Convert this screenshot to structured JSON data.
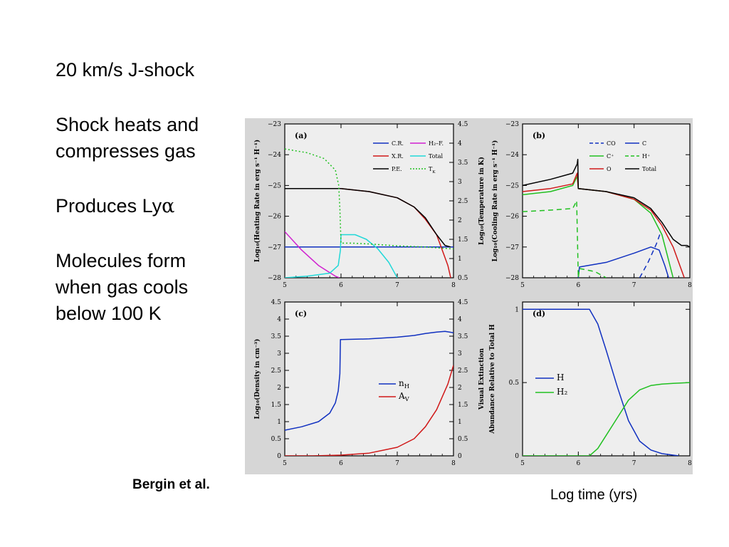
{
  "slide": {
    "title": "20 km/s J-shock",
    "bullet_1_line1": "Shock heats and",
    "bullet_1_line2": "compresses gas",
    "bullet_2_prefix": "Produces Ly",
    "bullet_2_symbol": "α",
    "bullet_3_line1": "Molecules form",
    "bullet_3_line2": "when gas cools",
    "bullet_3_line3": "below 100 K",
    "credit": "Bergin et al.",
    "x_caption": "Log time  (yrs)"
  },
  "colors": {
    "panel_bg": "#eeeeee",
    "frame_bg": "#d6d6d6",
    "blue": "#1030c0",
    "cyan": "#20d8d8",
    "magenta": "#d020d0",
    "red": "#d01818",
    "green": "#20c020",
    "black": "#000000"
  },
  "chart_data": [
    {
      "panel_label": "(a)",
      "type": "line",
      "xlim": [
        5,
        8
      ],
      "x_ticks": [
        "5",
        "6",
        "7",
        "8"
      ],
      "ylim": [
        -28,
        -23
      ],
      "y_ticks": [
        "-28",
        "-27",
        "-26",
        "-25",
        "-24",
        "-23"
      ],
      "ylabel": "Log₁₀(Heating Rate in erg s⁻¹ H⁻¹)",
      "y2lim": [
        0.5,
        4.5
      ],
      "y2_ticks": [
        "0.5",
        "1",
        "1.5",
        "2",
        "2.5",
        "3",
        "3.5",
        "4",
        "4.5"
      ],
      "y2label": "Log₁₀(Temperature in K)",
      "legend": [
        "C.R.",
        "H₂–F.",
        "X.R.",
        "Total",
        "P.E.",
        "T_K"
      ],
      "series": [
        {
          "name": "C.R.",
          "color": "#1030c0",
          "x": [
            5,
            8
          ],
          "y": [
            -27,
            -27
          ]
        },
        {
          "name": "X.R.",
          "color": "#d020d0",
          "x": [
            5,
            5.3,
            5.6,
            5.9,
            5.97
          ],
          "y": [
            -26.5,
            -27.1,
            -27.6,
            -27.95,
            -28
          ]
        },
        {
          "name": "P.E.",
          "color": "#d01818",
          "x": [
            5,
            5.5,
            6,
            6.5,
            7,
            7.3,
            7.5,
            7.7,
            7.9,
            7.95
          ],
          "y": [
            -25.1,
            -25.1,
            -25.1,
            -25.2,
            -25.4,
            -25.7,
            -26.1,
            -26.6,
            -27.6,
            -28
          ]
        },
        {
          "name": "H₂–F.",
          "color": "#20d8d8",
          "x": [
            5,
            5.4,
            5.8,
            5.95,
            5.99,
            6.0,
            6.25,
            6.45,
            6.65,
            6.85,
            7.0
          ],
          "y": [
            -28,
            -27.95,
            -27.85,
            -27.6,
            -27.1,
            -26.6,
            -26.6,
            -26.75,
            -27.05,
            -27.5,
            -28
          ]
        },
        {
          "name": "Total",
          "color": "#000000",
          "x": [
            5,
            5.5,
            5.95,
            6.0,
            6.5,
            7.0,
            7.3,
            7.5,
            7.7,
            7.85,
            7.95
          ],
          "y": [
            -25.1,
            -25.1,
            -25.1,
            -25.1,
            -25.2,
            -25.4,
            -25.7,
            -26.05,
            -26.6,
            -26.95,
            -27
          ]
        },
        {
          "name": "T_K",
          "axis": "right",
          "style": "dotted",
          "color": "#20c020",
          "x": [
            5,
            5.4,
            5.7,
            5.9,
            5.96,
            5.98,
            6.0,
            6.2,
            6.5,
            7.0,
            7.5,
            8.0
          ],
          "y": [
            3.85,
            3.75,
            3.6,
            3.3,
            2.9,
            2.3,
            1.4,
            1.4,
            1.38,
            1.33,
            1.3,
            1.25
          ]
        }
      ]
    },
    {
      "panel_label": "(b)",
      "type": "line",
      "xlim": [
        5,
        8
      ],
      "x_ticks": [
        "5",
        "6",
        "7",
        "8"
      ],
      "ylim": [
        -28,
        -23
      ],
      "y_ticks": [
        "-28",
        "-27",
        "-26",
        "-25",
        "-24",
        "-23"
      ],
      "ylabel": "Log₁₀(Cooling Rate in erg s⁻¹ H⁻¹)",
      "legend": [
        "CO",
        "C",
        "C⁺",
        "H⁺",
        "O",
        "Total"
      ],
      "series": [
        {
          "name": "CO",
          "style": "dashed",
          "color": "#1030c0",
          "x": [
            7.1,
            7.25,
            7.4,
            7.48
          ],
          "y": [
            -28,
            -27.5,
            -26.9,
            -26.5
          ]
        },
        {
          "name": "C",
          "color": "#1030c0",
          "x": [
            6.0,
            6.02,
            6.5,
            7.0,
            7.3,
            7.45,
            7.55,
            7.62
          ],
          "y": [
            -28,
            -27.65,
            -27.5,
            -27.2,
            -27.0,
            -27.1,
            -27.6,
            -28
          ]
        },
        {
          "name": "C⁺",
          "color": "#20c020",
          "x": [
            5,
            5.5,
            5.9,
            5.98,
            6.0,
            6.5,
            7.0,
            7.3,
            7.5,
            7.6,
            7.7
          ],
          "y": [
            -25.3,
            -25.2,
            -25.0,
            -24.7,
            -25.1,
            -25.2,
            -25.45,
            -25.9,
            -26.6,
            -27.3,
            -28
          ]
        },
        {
          "name": "H⁺",
          "style": "dashed",
          "color": "#20c020",
          "x": [
            5,
            5.5,
            5.9,
            5.97,
            6.0,
            6.02,
            6.3,
            6.5
          ],
          "y": [
            -25.85,
            -25.8,
            -25.75,
            -25.5,
            -28,
            -27.7,
            -27.8,
            -28
          ]
        },
        {
          "name": "O",
          "color": "#d01818",
          "x": [
            5,
            5.5,
            5.9,
            5.98,
            6.0,
            6.5,
            7.0,
            7.3,
            7.5,
            7.7,
            7.9
          ],
          "y": [
            -25.2,
            -25.1,
            -24.95,
            -24.6,
            -25.1,
            -25.2,
            -25.45,
            -25.8,
            -26.3,
            -27.0,
            -28
          ]
        },
        {
          "name": "Total",
          "color": "#000000",
          "x": [
            5,
            5.5,
            5.9,
            5.98,
            5.99,
            6.0,
            6.5,
            7.0,
            7.3,
            7.5,
            7.7,
            7.85,
            7.95,
            8.0
          ],
          "y": [
            -25.0,
            -24.8,
            -24.6,
            -24.3,
            -24.15,
            -25.1,
            -25.2,
            -25.4,
            -25.75,
            -26.2,
            -26.75,
            -26.95,
            -26.95,
            -27.0
          ]
        }
      ]
    },
    {
      "panel_label": "(c)",
      "type": "line",
      "xlim": [
        5,
        8
      ],
      "x_ticks": [
        "5",
        "6",
        "7",
        "8"
      ],
      "ylim": [
        0,
        4.5
      ],
      "y_ticks": [
        "0",
        "0.5",
        "1",
        "1.5",
        "2",
        "2.5",
        "3",
        "3.5",
        "4",
        "4.5"
      ],
      "ylabel": "Log₁₀(Density in cm⁻³)",
      "y2lim": [
        0,
        4.5
      ],
      "y2_ticks": [
        "0",
        "0.5",
        "1",
        "1.5",
        "2",
        "2.5",
        "3",
        "3.5",
        "4",
        "4.5"
      ],
      "y2label": "Visual Extinction",
      "legend": [
        "n_H",
        "A_V"
      ],
      "series": [
        {
          "name": "n_H",
          "color": "#1030c0",
          "x": [
            5,
            5.3,
            5.6,
            5.8,
            5.9,
            5.95,
            5.98,
            5.99,
            6.0,
            6.5,
            7.0,
            7.3,
            7.5,
            7.7,
            7.85,
            8.0
          ],
          "y": [
            0.75,
            0.85,
            1.0,
            1.25,
            1.55,
            1.9,
            2.4,
            3.4,
            3.4,
            3.42,
            3.47,
            3.52,
            3.58,
            3.62,
            3.64,
            3.6
          ]
        },
        {
          "name": "A_V",
          "axis": "right",
          "color": "#d01818",
          "x": [
            5,
            5.5,
            6.0,
            6.5,
            7.0,
            7.3,
            7.5,
            7.7,
            7.9,
            8.0
          ],
          "y": [
            0,
            0,
            0.02,
            0.08,
            0.25,
            0.5,
            0.85,
            1.35,
            2.1,
            2.65
          ]
        }
      ]
    },
    {
      "panel_label": "(d)",
      "type": "line",
      "xlim": [
        5,
        8
      ],
      "x_ticks": [
        "5",
        "6",
        "7",
        "8"
      ],
      "ylim": [
        0,
        1.05
      ],
      "y_ticks": [
        "0",
        "0.5",
        "1"
      ],
      "ylabel": "Abundance Relative to Total H",
      "legend": [
        "H",
        "H₂"
      ],
      "series": [
        {
          "name": "H",
          "color": "#1030c0",
          "x": [
            5,
            5.9,
            6.2,
            6.35,
            6.5,
            6.7,
            6.9,
            7.1,
            7.3,
            7.5,
            7.7,
            7.8
          ],
          "y": [
            1.0,
            1.0,
            1.0,
            0.9,
            0.72,
            0.47,
            0.24,
            0.1,
            0.04,
            0.015,
            0.005,
            0
          ]
        },
        {
          "name": "H₂",
          "color": "#20c020",
          "x": [
            5,
            6.2,
            6.35,
            6.5,
            6.7,
            6.9,
            7.1,
            7.3,
            7.5,
            7.7,
            8.0
          ],
          "y": [
            0,
            0,
            0.05,
            0.14,
            0.26,
            0.38,
            0.45,
            0.48,
            0.49,
            0.495,
            0.5
          ]
        }
      ]
    }
  ]
}
